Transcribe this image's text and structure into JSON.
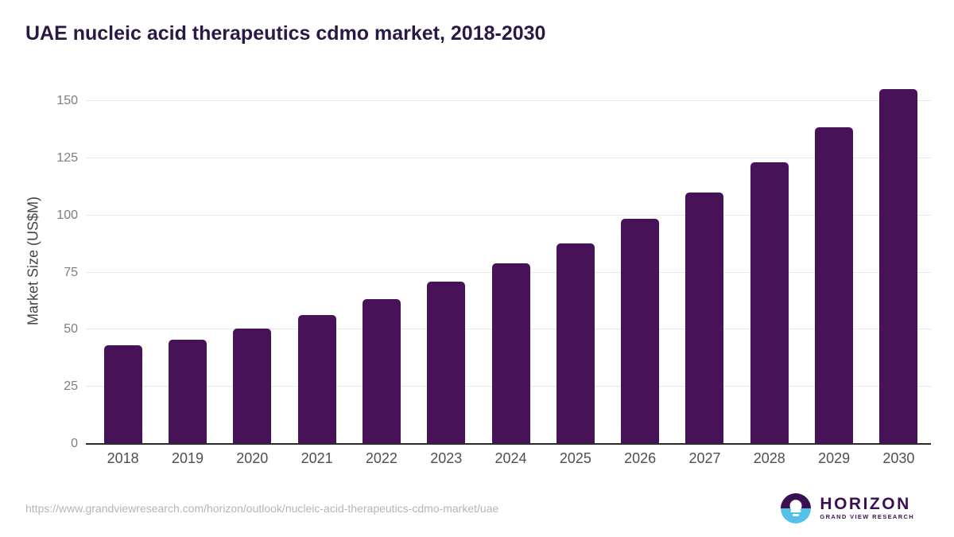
{
  "header": {
    "title": "UAE nucleic acid therapeutics cdmo market, 2018-2030"
  },
  "chart_data": {
    "type": "bar",
    "title": "UAE nucleic acid therapeutics cdmo market, 2018-2030",
    "categories": [
      "2018",
      "2019",
      "2020",
      "2021",
      "2022",
      "2023",
      "2024",
      "2025",
      "2026",
      "2027",
      "2028",
      "2029",
      "2030"
    ],
    "values": [
      43.2,
      45.6,
      50.5,
      56.5,
      63.5,
      70.9,
      79.2,
      87.9,
      98.5,
      110.2,
      123.4,
      138.5,
      155.3
    ],
    "xlabel": "",
    "ylabel": "Market Size (US$M)",
    "ylim": [
      0,
      150
    ],
    "yticks": [
      0,
      25,
      50,
      75,
      100,
      125,
      150
    ],
    "grid": true,
    "legend_position": "none",
    "bar_color": "#481259"
  },
  "footer": {
    "source_url": "https://www.grandviewresearch.com/horizon/outlook/nucleic-acid-therapeutics-cdmo-market/uae",
    "logo": {
      "brand": "HORIZON",
      "subbrand": "GRAND VIEW RESEARCH"
    }
  },
  "colors": {
    "background": "#ffffff",
    "title": "#2c1844",
    "bar": "#481259",
    "axis_line": "#2b2b2b",
    "gridline": "#e8e8e8",
    "tick_label": "#7d7d7d",
    "x_label": "#4f4f4f",
    "y_axis_title": "#454545",
    "url_text": "#b5b5b5",
    "logo_purple": "#3b1053",
    "logo_blue": "#56c1e8"
  }
}
